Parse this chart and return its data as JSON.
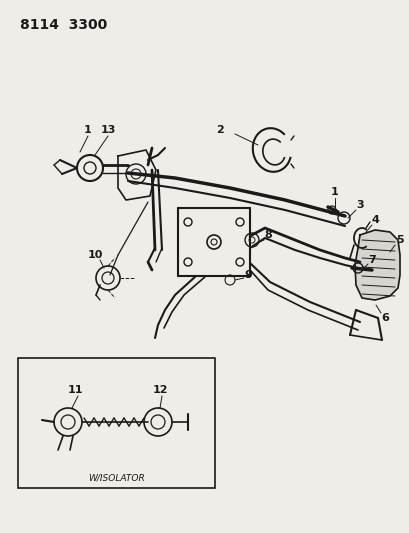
{
  "title": "8114  3300",
  "bg_color": "#f0ede8",
  "line_color": "#1a1a1a",
  "title_fontsize": 10,
  "inset_label": "W/ISOLATOR",
  "fig_width": 4.1,
  "fig_height": 5.33,
  "dpi": 100
}
